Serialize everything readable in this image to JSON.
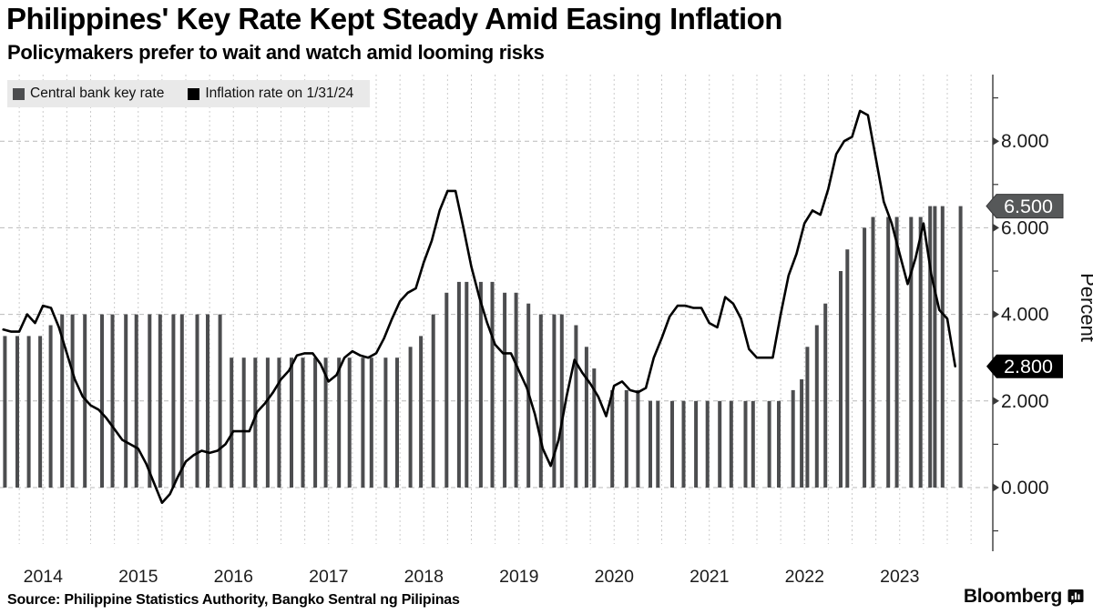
{
  "header": {
    "title": "Philippines' Key Rate Kept Steady Amid Easing Inflation",
    "subtitle": "Policymakers prefer to wait and watch amid looming risks"
  },
  "legend": {
    "background": "#e9e9e9",
    "items": [
      {
        "label": "Central bank key rate",
        "color": "#4c4d4f"
      },
      {
        "label": "Inflation rate on 1/31/24",
        "color": "#000000"
      }
    ]
  },
  "footer": {
    "source": "Source: Philippine Statistics Authority, Bangko Sentral ng Pilipinas",
    "brand": "Bloomberg"
  },
  "chart_data": {
    "type": "bar+line",
    "title": "Philippines' Key Rate Kept Steady Amid Easing Inflation",
    "subtitle": "Policymakers prefer to wait and watch amid looming risks",
    "ylabel": "Percent",
    "ylim": [
      -1.2,
      9.3
    ],
    "xlim_years": [
      2013.95,
      2024.45
    ],
    "grid": {
      "x_interval_years": 0.25,
      "y_gridlines_at": [
        0,
        2,
        4,
        6,
        8
      ]
    },
    "yticks": [
      {
        "value": 0,
        "label": "0.000"
      },
      {
        "value": 2,
        "label": "2.000"
      },
      {
        "value": 4,
        "label": "4.000"
      },
      {
        "value": 6,
        "label": "6.000"
      },
      {
        "value": 8,
        "label": "8.000"
      }
    ],
    "yticks_minor": [
      -1,
      1,
      3,
      5,
      7,
      9
    ],
    "x_year_labels": [
      "2014",
      "2015",
      "2016",
      "2017",
      "2018",
      "2019",
      "2020",
      "2021",
      "2022",
      "2023"
    ],
    "series": [
      {
        "name": "Central bank key rate",
        "type": "bar",
        "color": "#4c4d4f",
        "points": [
          [
            2014.1,
            3.5
          ],
          [
            2014.23,
            3.5
          ],
          [
            2014.35,
            3.5
          ],
          [
            2014.47,
            3.5
          ],
          [
            2014.58,
            3.75
          ],
          [
            2014.7,
            4
          ],
          [
            2014.81,
            4
          ],
          [
            2014.94,
            4
          ],
          [
            2015.12,
            4
          ],
          [
            2015.23,
            4
          ],
          [
            2015.37,
            4
          ],
          [
            2015.48,
            4
          ],
          [
            2015.62,
            4
          ],
          [
            2015.73,
            4
          ],
          [
            2015.87,
            4
          ],
          [
            2015.96,
            4
          ],
          [
            2016.12,
            4
          ],
          [
            2016.23,
            4
          ],
          [
            2016.36,
            4
          ],
          [
            2016.48,
            3
          ],
          [
            2016.61,
            3
          ],
          [
            2016.73,
            3
          ],
          [
            2016.86,
            3
          ],
          [
            2016.98,
            3
          ],
          [
            2017.11,
            3
          ],
          [
            2017.23,
            3
          ],
          [
            2017.36,
            3
          ],
          [
            2017.47,
            3
          ],
          [
            2017.61,
            3
          ],
          [
            2017.72,
            3
          ],
          [
            2017.86,
            3
          ],
          [
            2017.95,
            3
          ],
          [
            2018.1,
            3
          ],
          [
            2018.22,
            3
          ],
          [
            2018.36,
            3.25
          ],
          [
            2018.47,
            3.5
          ],
          [
            2018.6,
            4
          ],
          [
            2018.74,
            4.5
          ],
          [
            2018.87,
            4.75
          ],
          [
            2018.95,
            4.75
          ],
          [
            2019.1,
            4.75
          ],
          [
            2019.22,
            4.75
          ],
          [
            2019.35,
            4.5
          ],
          [
            2019.47,
            4.5
          ],
          [
            2019.6,
            4.25
          ],
          [
            2019.73,
            4
          ],
          [
            2019.87,
            4
          ],
          [
            2019.95,
            4
          ],
          [
            2020.1,
            3.75
          ],
          [
            2020.21,
            3.25
          ],
          [
            2020.29,
            2.75
          ],
          [
            2020.48,
            2.25
          ],
          [
            2020.63,
            2.25
          ],
          [
            2020.75,
            2.25
          ],
          [
            2020.88,
            2
          ],
          [
            2020.96,
            2
          ],
          [
            2021.11,
            2
          ],
          [
            2021.23,
            2
          ],
          [
            2021.36,
            2
          ],
          [
            2021.48,
            2
          ],
          [
            2021.61,
            2
          ],
          [
            2021.73,
            2
          ],
          [
            2021.88,
            2
          ],
          [
            2021.96,
            2
          ],
          [
            2022.13,
            2
          ],
          [
            2022.23,
            2
          ],
          [
            2022.38,
            2.25
          ],
          [
            2022.47,
            2.5
          ],
          [
            2022.53,
            3.25
          ],
          [
            2022.63,
            3.75
          ],
          [
            2022.72,
            4.25
          ],
          [
            2022.88,
            5
          ],
          [
            2022.95,
            5.5
          ],
          [
            2023.13,
            6
          ],
          [
            2023.22,
            6.25
          ],
          [
            2023.38,
            6.25
          ],
          [
            2023.47,
            6.25
          ],
          [
            2023.62,
            6.25
          ],
          [
            2023.72,
            6.25
          ],
          [
            2023.82,
            6.5
          ],
          [
            2023.87,
            6.5
          ],
          [
            2023.95,
            6.5
          ],
          [
            2024.14,
            6.5
          ]
        ]
      },
      {
        "name": "Inflation rate on 1/31/24",
        "type": "line",
        "color": "#000000",
        "start_month": "2014-01",
        "frequency": "monthly",
        "values": [
          3.65,
          3.6,
          3.6,
          4.0,
          3.8,
          4.2,
          4.15,
          3.7,
          3.1,
          2.5,
          2.1,
          1.9,
          1.8,
          1.6,
          1.35,
          1.1,
          1.0,
          0.9,
          0.55,
          0.1,
          -0.35,
          -0.15,
          0.25,
          0.6,
          0.75,
          0.85,
          0.8,
          0.85,
          1.0,
          1.3,
          1.3,
          1.3,
          1.75,
          1.95,
          2.2,
          2.5,
          2.7,
          3.05,
          3.1,
          3.1,
          2.85,
          2.45,
          2.6,
          3.0,
          3.15,
          3.05,
          3.0,
          3.1,
          3.45,
          3.9,
          4.3,
          4.5,
          4.6,
          5.2,
          5.7,
          6.4,
          6.85,
          6.85,
          6.0,
          5.1,
          4.4,
          3.8,
          3.3,
          3.1,
          3.1,
          2.7,
          2.3,
          1.7,
          0.9,
          0.5,
          1.1,
          2.1,
          2.95,
          2.65,
          2.4,
          2.1,
          1.65,
          2.35,
          2.45,
          2.25,
          2.2,
          2.3,
          3.0,
          3.45,
          3.95,
          4.2,
          4.2,
          4.15,
          4.15,
          3.8,
          3.7,
          4.4,
          4.25,
          3.9,
          3.2,
          3.0,
          3.0,
          3.0,
          4.0,
          4.9,
          5.4,
          6.1,
          6.4,
          6.3,
          6.9,
          7.7,
          8.0,
          8.1,
          8.7,
          8.6,
          7.6,
          6.6,
          6.1,
          5.4,
          4.7,
          5.3,
          6.1,
          4.9,
          4.1,
          3.9,
          2.8
        ]
      }
    ],
    "annotations": [
      {
        "label": "6.500",
        "value": 6.5,
        "bg": "#565859",
        "fg": "#ffffff",
        "border": "#38383a"
      },
      {
        "label": "2.800",
        "value": 2.8,
        "bg": "#000000",
        "fg": "#ffffff",
        "border": "none"
      }
    ]
  }
}
